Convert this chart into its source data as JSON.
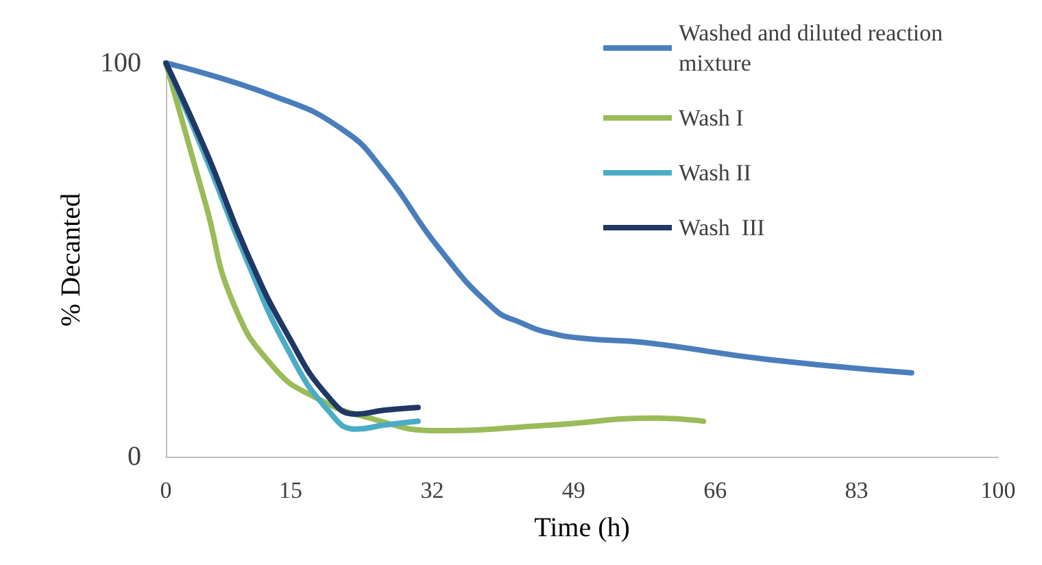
{
  "chart_data": {
    "type": "line",
    "xlabel": "Time (h)",
    "ylabel": "% Decanted",
    "xlim": [
      0,
      100
    ],
    "xticks": [
      0,
      15,
      32,
      49,
      66,
      83,
      100
    ],
    "ylim": [
      0,
      100
    ],
    "yticks": [
      0,
      100
    ],
    "grid": false,
    "legend": "top right",
    "marker": "none",
    "line_style": "solid",
    "series": [
      {
        "name": "Washed and diluted reaction mixture",
        "color": "#4a7ebb",
        "x": [
          0,
          13,
          21.3,
          26.2,
          32.8,
          39.4,
          42.7,
          46,
          50.4,
          57.5,
          72.3,
          89.6
        ],
        "values": [
          100,
          91.6,
          83,
          72.5,
          53,
          37.6,
          34,
          31.5,
          30,
          29,
          24.7,
          21.3
        ]
      },
      {
        "name": "Wash I",
        "color": "#9bbb59",
        "x": [
          0,
          4.8,
          8.1,
          13,
          18,
          24.5,
          32.8,
          46,
          59.1,
          64.6
        ],
        "values": [
          100,
          64,
          39,
          22.6,
          15,
          9.8,
          6.6,
          8,
          9.8,
          9
        ]
      },
      {
        "name": "Wash II",
        "color": "#4bacc6",
        "x": [
          0,
          4.8,
          9.7,
          14.7,
          19.6,
          22.9,
          26.2,
          30.3
        ],
        "values": [
          100,
          76,
          50,
          27,
          11.5,
          7,
          8,
          9
        ]
      },
      {
        "name": "Wash  III",
        "color": "#1f3864",
        "x": [
          0,
          4.8,
          9.7,
          14.7,
          19.6,
          22.9,
          26.2,
          30.3
        ],
        "values": [
          100,
          77.7,
          52,
          30.7,
          15,
          10.8,
          11.8,
          12.5
        ]
      }
    ]
  }
}
